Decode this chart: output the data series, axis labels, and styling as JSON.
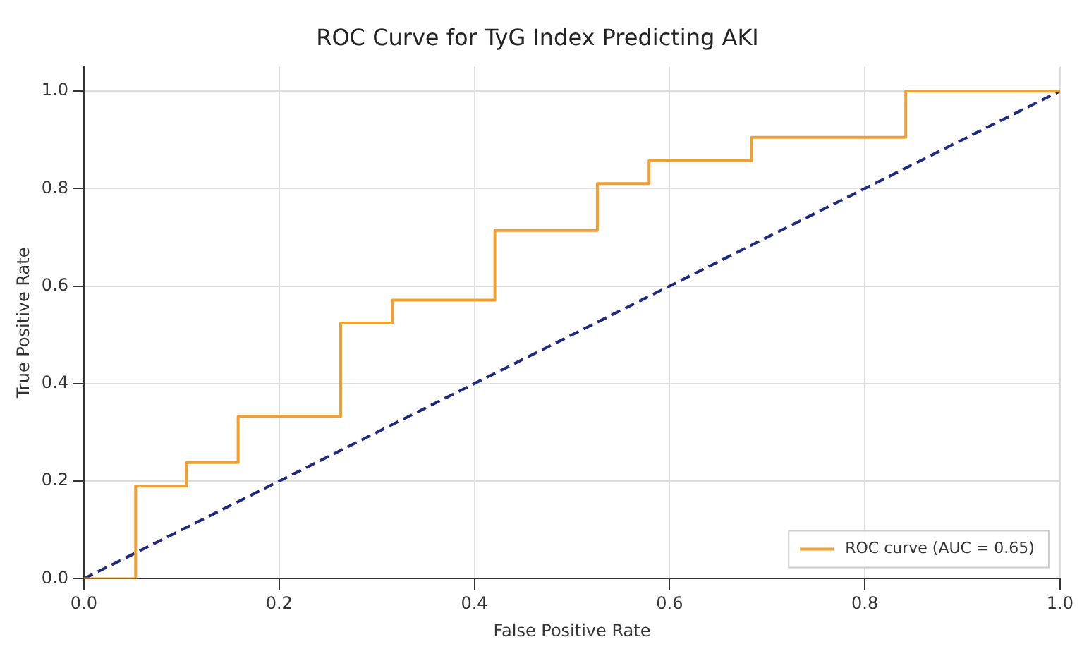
{
  "chart_data": {
    "type": "line",
    "title": "ROC Curve for TyG Index Predicting AKI",
    "xlabel": "False Positive Rate",
    "ylabel": "True Positive Rate",
    "xlim": [
      0,
      1
    ],
    "ylim": [
      0,
      1.05
    ],
    "xticks": [
      {
        "value": 0,
        "label": "0.0"
      },
      {
        "value": 0.2,
        "label": "0.2"
      },
      {
        "value": 0.4,
        "label": "0.4"
      },
      {
        "value": 0.6,
        "label": "0.6"
      },
      {
        "value": 0.8,
        "label": "0.8"
      },
      {
        "value": 1,
        "label": "1.0"
      }
    ],
    "yticks": [
      {
        "value": 0,
        "label": "0.0"
      },
      {
        "value": 0.2,
        "label": "0.2"
      },
      {
        "value": 0.4,
        "label": "0.4"
      },
      {
        "value": 0.6,
        "label": "0.6"
      },
      {
        "value": 0.8,
        "label": "0.8"
      },
      {
        "value": 1,
        "label": "1.0"
      }
    ],
    "grid": true,
    "legend": "bottom right",
    "marker": "none",
    "series": [
      {
        "name": "ROC curve (AUC = 0.65)",
        "color": "#f0a030",
        "line_style": "solid",
        "x": [
          0,
          0.053,
          0.053,
          0.105,
          0.105,
          0.158,
          0.158,
          0.263,
          0.263,
          0.316,
          0.316,
          0.421,
          0.421,
          0.526,
          0.526,
          0.579,
          0.579,
          0.684,
          0.684,
          0.842,
          0.842,
          1
        ],
        "values": [
          0,
          0,
          0.19,
          0.19,
          0.238,
          0.238,
          0.333,
          0.333,
          0.524,
          0.524,
          0.571,
          0.571,
          0.714,
          0.714,
          0.81,
          0.81,
          0.857,
          0.857,
          0.905,
          0.905,
          1,
          1
        ]
      },
      {
        "color": "#1f2a80",
        "line_style": "dashed",
        "x": [
          0,
          1
        ],
        "values": [
          0,
          1
        ]
      }
    ]
  }
}
